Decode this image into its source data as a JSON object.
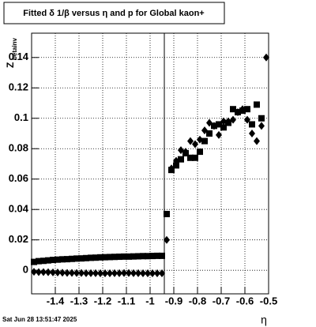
{
  "chart_data": {
    "type": "scatter",
    "title": "Fitted δ 1/β versus η and p for Global kaon+",
    "x_label": "η",
    "y_label": "Z",
    "y_label_sub": "betainv",
    "footer": "Sat Jun 28 13:51:47 2025",
    "xlim": [
      -1.5,
      -0.5
    ],
    "ylim": [
      -0.0155,
      0.156
    ],
    "xticks": [
      -1.4,
      -1.3,
      -1.2,
      -1.1,
      -1,
      -0.9,
      -0.8,
      -0.7,
      -0.6,
      -0.5
    ],
    "yticks": [
      0,
      0.02,
      0.04,
      0.06,
      0.08,
      0.1,
      0.12,
      0.14
    ],
    "grid": true,
    "vline": -0.94,
    "series": [
      {
        "marker": "square",
        "color": "#000000",
        "x": [
          -1.49,
          -1.47,
          -1.45,
          -1.43,
          -1.41,
          -1.39,
          -1.37,
          -1.35,
          -1.33,
          -1.31,
          -1.29,
          -1.27,
          -1.25,
          -1.23,
          -1.21,
          -1.19,
          -1.17,
          -1.15,
          -1.13,
          -1.11,
          -1.09,
          -1.07,
          -1.05,
          -1.03,
          -1.01,
          -0.99,
          -0.97,
          -0.95,
          -0.93,
          -0.91,
          -0.89,
          -0.87,
          -0.85,
          -0.83,
          -0.81,
          -0.79,
          -0.77,
          -0.75,
          -0.73,
          -0.71,
          -0.69,
          -0.67,
          -0.65,
          -0.63,
          -0.61,
          -0.59,
          -0.57,
          -0.55,
          -0.53
        ],
        "values": [
          0.0055,
          0.006,
          0.0062,
          0.0065,
          0.0068,
          0.007,
          0.0072,
          0.0073,
          0.0075,
          0.0077,
          0.0078,
          0.008,
          0.0082,
          0.0083,
          0.0085,
          0.0086,
          0.0087,
          0.0088,
          0.0089,
          0.009,
          0.009,
          0.0091,
          0.0092,
          0.0093,
          0.0093,
          0.0094,
          0.0095,
          0.0095,
          0.037,
          0.066,
          0.069,
          0.073,
          0.077,
          0.074,
          0.074,
          0.078,
          0.085,
          0.09,
          0.095,
          0.096,
          0.094,
          0.097,
          0.106,
          0.104,
          0.105,
          0.106,
          0.096,
          0.109,
          0.1
        ]
      },
      {
        "marker": "diamond",
        "color": "#000000",
        "x": [
          -1.49,
          -1.47,
          -1.45,
          -1.43,
          -1.41,
          -1.39,
          -1.37,
          -1.35,
          -1.33,
          -1.31,
          -1.29,
          -1.27,
          -1.25,
          -1.23,
          -1.21,
          -1.19,
          -1.17,
          -1.15,
          -1.13,
          -1.11,
          -1.09,
          -1.07,
          -1.05,
          -1.03,
          -1.01,
          -0.99,
          -0.97,
          -0.95,
          -0.93,
          -0.91,
          -0.89,
          -0.87,
          -0.85,
          -0.83,
          -0.81,
          -0.79,
          -0.77,
          -0.75,
          -0.73,
          -0.71,
          -0.69,
          -0.67,
          -0.65,
          -0.63,
          -0.61,
          -0.59,
          -0.57,
          -0.55,
          -0.53,
          -0.51
        ],
        "values": [
          -0.001,
          -0.0012,
          -0.0012,
          -0.0013,
          -0.0014,
          -0.0015,
          -0.0016,
          -0.0017,
          -0.0017,
          -0.0018,
          -0.0018,
          -0.0019,
          -0.0019,
          -0.0019,
          -0.002,
          -0.002,
          -0.002,
          -0.0019,
          -0.0019,
          -0.0018,
          -0.0018,
          -0.0019,
          -0.0019,
          -0.002,
          -0.002,
          -0.002,
          -0.002,
          -0.002,
          0.02,
          0.067,
          0.072,
          0.079,
          0.078,
          0.085,
          0.083,
          0.086,
          0.092,
          0.097,
          0.095,
          0.089,
          0.098,
          0.098,
          0.099,
          0.104,
          0.106,
          0.099,
          0.09,
          0.085,
          0.095,
          0.14
        ]
      }
    ]
  }
}
